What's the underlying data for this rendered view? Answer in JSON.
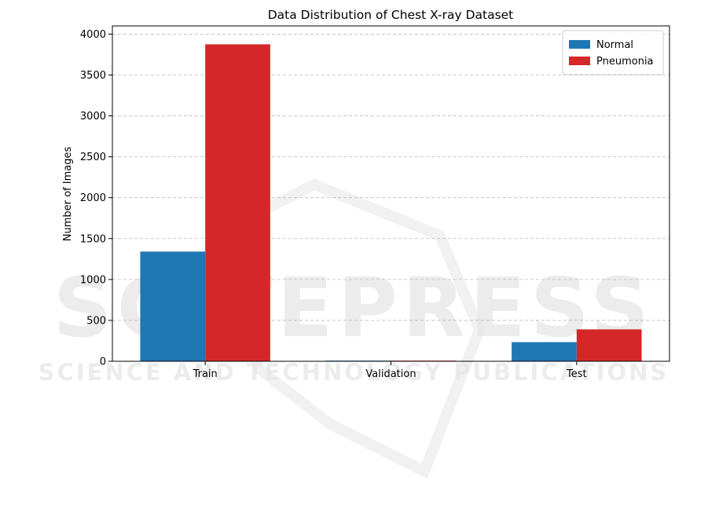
{
  "chart_data": {
    "type": "bar",
    "title": "Data Distribution of Chest X-ray Dataset",
    "xlabel": "",
    "ylabel": "Number of Images",
    "categories": [
      "Train",
      "Validation",
      "Test"
    ],
    "series": [
      {
        "name": "Normal",
        "color": "#1f77b4",
        "values": [
          1341,
          8,
          234
        ]
      },
      {
        "name": "Pneumonia",
        "color": "#d62728",
        "values": [
          3875,
          8,
          390
        ]
      }
    ],
    "ylim": [
      0,
      4100
    ],
    "yticks": [
      0,
      500,
      1000,
      1500,
      2000,
      2500,
      3000,
      3500,
      4000
    ],
    "grid": "y-dashed",
    "legend_position": "top-right"
  },
  "watermark": {
    "main": "SCITEPRESS",
    "sub": "SCIENCE AND TECHNOLOGY PUBLICATIONS"
  }
}
